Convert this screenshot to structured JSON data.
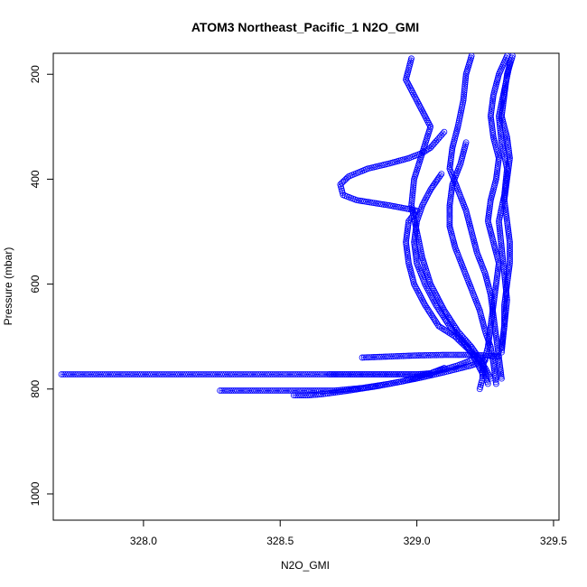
{
  "chart_data": {
    "type": "scatter",
    "title": "ATOM3 Northeast_Pacific_1 N2O_GMI",
    "xlabel": "N2O_GMI",
    "ylabel": "Pressure (mbar)",
    "xlim": [
      327.67,
      329.52
    ],
    "ylim": [
      1050,
      160
    ],
    "y_reversed": true,
    "x_ticks": [
      328.0,
      328.5,
      329.0,
      329.5
    ],
    "x_tick_labels": [
      "328.0",
      "328.5",
      "329.0",
      "329.5"
    ],
    "y_ticks": [
      200,
      400,
      600,
      800,
      1000
    ],
    "y_tick_labels": [
      "200",
      "400",
      "600",
      "800",
      "1000"
    ],
    "grid": false,
    "marker": "open-circle",
    "color": "#0000ff",
    "series": [
      {
        "x": [
          329.33,
          329.3,
          329.28,
          329.27,
          329.28,
          329.3,
          329.29,
          329.27,
          329.26,
          329.28,
          329.3,
          329.29,
          329.28,
          329.27,
          329.26,
          329.25,
          329.24,
          329.24,
          329.23
        ],
        "y": [
          165,
          200,
          240,
          280,
          320,
          360,
          400,
          440,
          480,
          520,
          560,
          600,
          640,
          680,
          720,
          740,
          760,
          780,
          800
        ]
      },
      {
        "x": [
          329.2,
          329.18,
          329.17,
          329.15,
          329.13,
          329.12,
          329.15,
          329.18,
          329.2,
          329.22,
          329.25,
          329.27,
          329.28,
          329.29,
          329.3,
          329.31
        ],
        "y": [
          165,
          200,
          250,
          300,
          340,
          380,
          420,
          460,
          500,
          540,
          580,
          620,
          660,
          700,
          740,
          780
        ]
      },
      {
        "x": [
          328.98,
          328.96,
          329.0,
          329.05,
          329.02,
          328.99,
          328.98,
          329.0,
          329.02,
          329.05,
          329.1,
          329.15,
          329.2,
          329.24,
          329.26
        ],
        "y": [
          170,
          210,
          250,
          300,
          350,
          400,
          450,
          500,
          550,
          600,
          650,
          690,
          720,
          750,
          790
        ]
      },
      {
        "x": [
          329.1,
          329.05,
          329.02,
          328.97,
          328.9,
          328.82,
          328.75,
          328.72,
          328.73,
          328.78,
          328.9,
          329.0,
          328.97,
          328.96,
          328.97,
          328.99,
          329.03,
          329.08,
          329.14,
          329.18,
          329.22,
          329.25,
          329.27
        ],
        "y": [
          310,
          340,
          350,
          360,
          370,
          380,
          395,
          410,
          430,
          440,
          450,
          460,
          480,
          520,
          560,
          600,
          640,
          680,
          700,
          720,
          740,
          760,
          780
        ]
      },
      {
        "x": [
          329.09,
          329.05,
          329.02,
          329.0,
          328.99,
          329.0,
          329.03,
          329.07,
          329.12,
          329.17,
          329.2,
          329.22,
          329.24
        ],
        "y": [
          390,
          420,
          450,
          480,
          520,
          560,
          600,
          640,
          680,
          710,
          730,
          750,
          770
        ]
      },
      {
        "x": [
          329.18,
          329.16,
          329.13,
          329.12,
          329.12,
          329.14,
          329.17,
          329.2,
          329.23,
          329.25,
          329.27,
          329.28,
          329.29
        ],
        "y": [
          330,
          370,
          410,
          450,
          490,
          530,
          570,
          610,
          650,
          690,
          720,
          750,
          790
        ]
      },
      {
        "x": [
          329.35,
          329.33,
          329.32,
          329.31,
          329.33,
          329.34,
          329.33,
          329.32,
          329.33,
          329.34,
          329.34,
          329.33,
          329.32,
          329.32,
          329.31
        ],
        "y": [
          165,
          200,
          240,
          280,
          320,
          360,
          400,
          440,
          480,
          520,
          560,
          600,
          640,
          680,
          720
        ]
      },
      {
        "x": [
          329.34,
          329.32,
          329.3,
          329.31,
          329.33,
          329.32,
          329.3,
          329.31,
          329.32,
          329.33,
          329.32,
          329.31
        ],
        "y": [
          180,
          230,
          280,
          330,
          380,
          430,
          480,
          530,
          580,
          630,
          680,
          730
        ]
      },
      {
        "x": [
          327.7,
          327.8,
          327.9,
          328.0,
          328.1,
          328.2,
          328.3,
          328.4,
          328.5,
          328.6,
          328.7,
          328.8,
          328.9,
          329.0,
          329.05,
          329.1
        ],
        "y": [
          772,
          772,
          772,
          772,
          772,
          772,
          772,
          772,
          772,
          772,
          772,
          772,
          772,
          772,
          770,
          760
        ]
      },
      {
        "x": [
          328.28,
          328.35,
          328.42,
          328.5,
          328.58,
          328.65,
          328.7,
          328.8,
          328.9,
          329.0,
          329.1,
          329.2,
          329.25
        ],
        "y": [
          803,
          803,
          803,
          803,
          803,
          803,
          803,
          798,
          790,
          780,
          768,
          755,
          745
        ]
      },
      {
        "x": [
          328.55,
          328.6,
          328.65,
          328.68,
          328.75,
          328.85,
          328.95,
          329.05,
          329.15,
          329.2
        ],
        "y": [
          812,
          812,
          810,
          808,
          803,
          795,
          785,
          770,
          755,
          745
        ]
      },
      {
        "x": [
          328.8,
          328.9,
          329.0,
          329.1,
          329.2,
          329.25,
          329.3
        ],
        "y": [
          740,
          738,
          736,
          735,
          735,
          736,
          738
        ]
      },
      {
        "x": [
          328.68,
          328.75,
          328.85,
          328.95,
          329.05
        ],
        "y": [
          772,
          772,
          772,
          772,
          772
        ]
      }
    ]
  }
}
